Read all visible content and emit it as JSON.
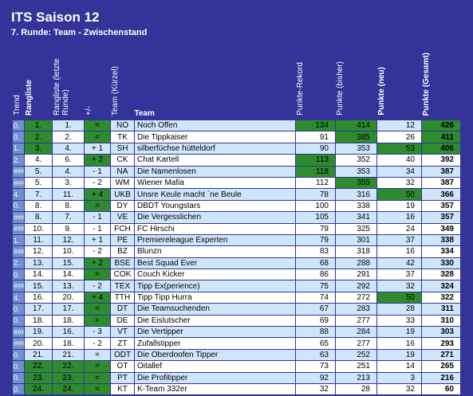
{
  "header": {
    "title": "ITS Saison 12",
    "subtitle": "7. Runde: Team - Zwischenstand"
  },
  "table": {
    "columns": [
      "Trend",
      "Rangliste",
      "Rangliste (letzte Runde)",
      "+/-",
      "Team (Kürzel)",
      "Team",
      "Punkte-Rekord",
      "Punkte (bisher)",
      "Punkte (neu)",
      "Punkte (Gesamt)"
    ],
    "rows": [
      [
        "0.",
        "1.",
        "1.",
        "=",
        "NO",
        "Noch Offen",
        134,
        414,
        12,
        426
      ],
      [
        "0.",
        "2.",
        "2.",
        "=",
        "TK",
        "Die Tippkaiser",
        91,
        385,
        26,
        411
      ],
      [
        "1.",
        "3.",
        "4.",
        "+ 1",
        "SH",
        "silberfüchse hütteldorf",
        90,
        353,
        53,
        406
      ],
      [
        "2.",
        "4.",
        "6.",
        "+ 2",
        "CK",
        "Chat Kartell",
        113,
        352,
        40,
        392
      ],
      [
        "###",
        "5.",
        "4.",
        "- 1",
        "NA",
        "Die Namenlosen",
        118,
        353,
        34,
        387
      ],
      [
        "###",
        "5.",
        "3.",
        "- 2",
        "WM",
        "Wiener Mafia",
        112,
        355,
        32,
        387
      ],
      [
        "4.",
        "7.",
        "11.",
        "+ 4",
        "UKB",
        "Unsre Keule macht ´ne Beule",
        78,
        316,
        50,
        366
      ],
      [
        "0.",
        "8.",
        "8.",
        "=",
        "DY",
        "DBDT Youngstars",
        100,
        338,
        19,
        357
      ],
      [
        "###",
        "8.",
        "7.",
        "- 1",
        "VE",
        "Die Vergesslichen",
        105,
        341,
        16,
        357
      ],
      [
        "###",
        "10.",
        "9.",
        "- 1",
        "FCH",
        "FC Hirschi",
        79,
        325,
        24,
        349
      ],
      [
        "1.",
        "11.",
        "12.",
        "+ 1",
        "PE",
        "Premiereleague Experten",
        79,
        301,
        37,
        338
      ],
      [
        "###",
        "12.",
        "10.",
        "- 2",
        "BZ",
        "Blunzn",
        83,
        318,
        16,
        334
      ],
      [
        "2.",
        "13.",
        "15.",
        "+ 2",
        "BSE",
        "Best Squad Ever",
        68,
        288,
        42,
        330
      ],
      [
        "0.",
        "14.",
        "14.",
        "=",
        "COK",
        "Couch Kicker",
        86,
        291,
        37,
        328
      ],
      [
        "###",
        "15.",
        "13.",
        "- 2",
        "TEX",
        "Tipp Ex(perience)",
        75,
        292,
        32,
        324
      ],
      [
        "4.",
        "16.",
        "20.",
        "+ 4",
        "TTH",
        "Tipp Tipp Hurra",
        74,
        272,
        50,
        322
      ],
      [
        "0.",
        "17.",
        "17.",
        "=",
        "DT",
        "Die Teamsuchenden",
        67,
        283,
        28,
        311
      ],
      [
        "0.",
        "18.",
        "18.",
        "=",
        "DE",
        "Die Eislutscher",
        69,
        277,
        33,
        310
      ],
      [
        "###",
        "19.",
        "16.",
        "- 3",
        "VT",
        "Die Vertipper",
        88,
        284,
        19,
        303
      ],
      [
        "###",
        "20.",
        "18.",
        "- 2",
        "ZT",
        "Zufallstipper",
        65,
        277,
        16,
        293
      ],
      [
        "0.",
        "21.",
        "21.",
        "=",
        "ODT",
        "Die Oberdoofen Tipper",
        63,
        252,
        19,
        271
      ],
      [
        "0.",
        "22.",
        "22.",
        "=",
        "OT",
        "Oitallef",
        73,
        251,
        14,
        265
      ],
      [
        "0.",
        "23.",
        "23.",
        "=",
        "PT",
        "Die Profitipper",
        92,
        213,
        3,
        216
      ],
      [
        "0.",
        "24.",
        "24.",
        "=",
        "KT",
        "K-Team 332er",
        32,
        28,
        32,
        60
      ]
    ]
  }
}
